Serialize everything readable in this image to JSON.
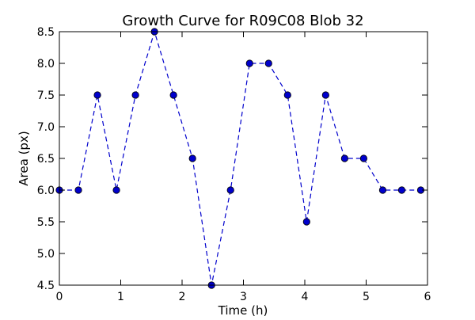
{
  "chart_data": {
    "type": "line",
    "title": "Growth Curve for R09C08 Blob 32",
    "xlabel": "Time (h)",
    "ylabel": "Area (px)",
    "xlim": [
      0,
      6
    ],
    "ylim": [
      4.5,
      8.5
    ],
    "xticks": [
      0,
      1,
      2,
      3,
      4,
      5,
      6
    ],
    "xtick_labels": [
      "0",
      "1",
      "2",
      "3",
      "4",
      "5",
      "6"
    ],
    "yticks": [
      4.5,
      5.0,
      5.5,
      6.0,
      6.5,
      7.0,
      7.5,
      8.0,
      8.5
    ],
    "ytick_labels": [
      "4.5",
      "5.0",
      "5.5",
      "6.0",
      "6.5",
      "7.0",
      "7.5",
      "8.0",
      "8.5"
    ],
    "grid": false,
    "series": [
      {
        "line_style": "dashed",
        "marker": "circle",
        "color": "#0000cc",
        "x": [
          0,
          0.31,
          0.62,
          0.93,
          1.24,
          1.55,
          1.86,
          2.17,
          2.48,
          2.79,
          3.1,
          3.41,
          3.72,
          4.03,
          4.34,
          4.65,
          4.96,
          5.27,
          5.58,
          5.89
        ],
        "y": [
          6.0,
          6.0,
          7.5,
          6.0,
          7.5,
          8.5,
          7.5,
          6.5,
          4.5,
          6.0,
          8.0,
          8.0,
          7.5,
          5.5,
          7.5,
          6.5,
          6.5,
          6.0,
          6.0,
          6.0
        ]
      }
    ]
  }
}
